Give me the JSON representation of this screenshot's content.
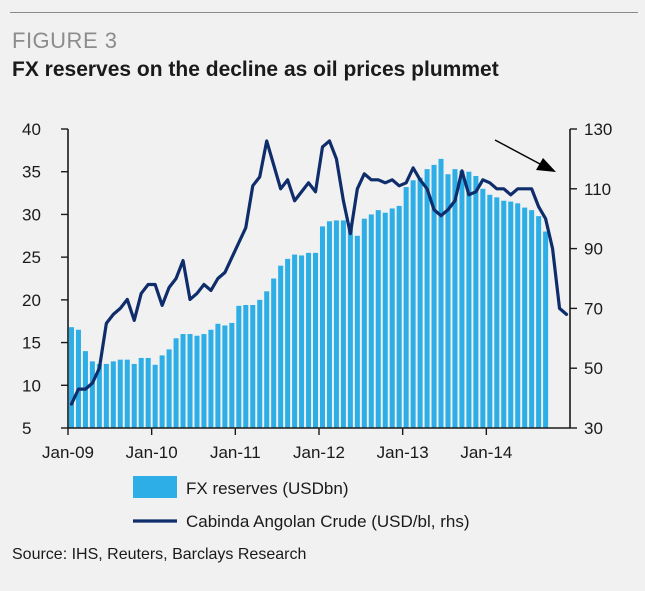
{
  "figure_label": "FIGURE 3",
  "title": "FX reserves on the decline as oil prices plummet",
  "source": "Source: IHS, Reuters, Barclays Research",
  "colors": {
    "bars": "#2eaee6",
    "line": "#0f2d6b",
    "axis": "#1a1a1a",
    "background": "#f1f1f1",
    "figure_label": "#8c8c8c"
  },
  "chart_data": {
    "type": "bar+line",
    "title": "FX reserves on the decline as oil prices plummet",
    "x_tick_labels": [
      "Jan-09",
      "Jan-10",
      "Jan-11",
      "Jan-12",
      "Jan-13",
      "Jan-14"
    ],
    "x_tick_index": [
      0,
      12,
      24,
      36,
      48,
      60
    ],
    "left_axis": {
      "label": "FX reserves (USDbn)",
      "ylim": [
        5,
        40
      ],
      "ticks": [
        5,
        10,
        15,
        20,
        25,
        30,
        35,
        40
      ]
    },
    "right_axis": {
      "label": "Cabinda Angolan Crude (USD/bl, rhs)",
      "ylim": [
        30,
        130
      ],
      "ticks": [
        30,
        50,
        70,
        90,
        110,
        130
      ]
    },
    "months_total": 72,
    "series": [
      {
        "name": "FX reserves (USDbn)",
        "type": "bar",
        "axis": "left",
        "values": [
          16.8,
          16.5,
          14.0,
          12.8,
          12.5,
          12.5,
          12.8,
          13.0,
          13.0,
          12.5,
          13.2,
          13.2,
          12.4,
          13.5,
          14.2,
          15.5,
          16.0,
          16.0,
          15.8,
          16.0,
          16.5,
          17.2,
          17.0,
          17.3,
          19.3,
          19.4,
          19.4,
          20.0,
          21.0,
          22.5,
          24.0,
          24.8,
          25.3,
          25.2,
          25.5,
          25.5,
          28.6,
          29.2,
          29.3,
          29.3,
          29.0,
          27.5,
          29.5,
          30.0,
          30.5,
          30.2,
          30.7,
          31.0,
          33.2,
          34.0,
          34.3,
          35.3,
          35.8,
          36.5,
          34.7,
          35.3,
          35.1,
          35.0,
          34.5,
          33.0,
          32.3,
          32.0,
          31.6,
          31.5,
          31.3,
          30.8,
          30.5,
          29.8,
          28.0,
          null,
          null,
          null
        ]
      },
      {
        "name": "Cabinda Angolan Crude (USD/bl, rhs)",
        "type": "line",
        "axis": "right",
        "values": [
          38,
          43,
          43,
          45,
          50,
          65,
          68,
          70,
          73,
          66,
          75,
          78,
          78,
          71,
          77,
          80,
          86,
          73,
          75,
          78,
          76,
          80,
          82,
          87,
          92,
          97,
          111,
          114,
          126,
          118,
          110,
          113,
          106,
          109,
          112,
          109,
          124,
          126,
          120,
          106,
          95,
          110,
          115,
          113,
          113,
          112,
          113,
          111,
          112,
          117,
          113,
          110,
          103,
          101,
          103,
          106,
          116,
          108,
          109,
          113,
          112,
          110,
          110,
          108,
          110,
          110,
          110,
          104,
          100,
          90,
          70,
          68
        ]
      }
    ],
    "annotations": [
      "arrow pointing down toward the oil price decline (top-right)"
    ],
    "legend": [
      "FX reserves (USDbn)",
      "Cabinda Angolan Crude (USD/bl, rhs)"
    ]
  }
}
